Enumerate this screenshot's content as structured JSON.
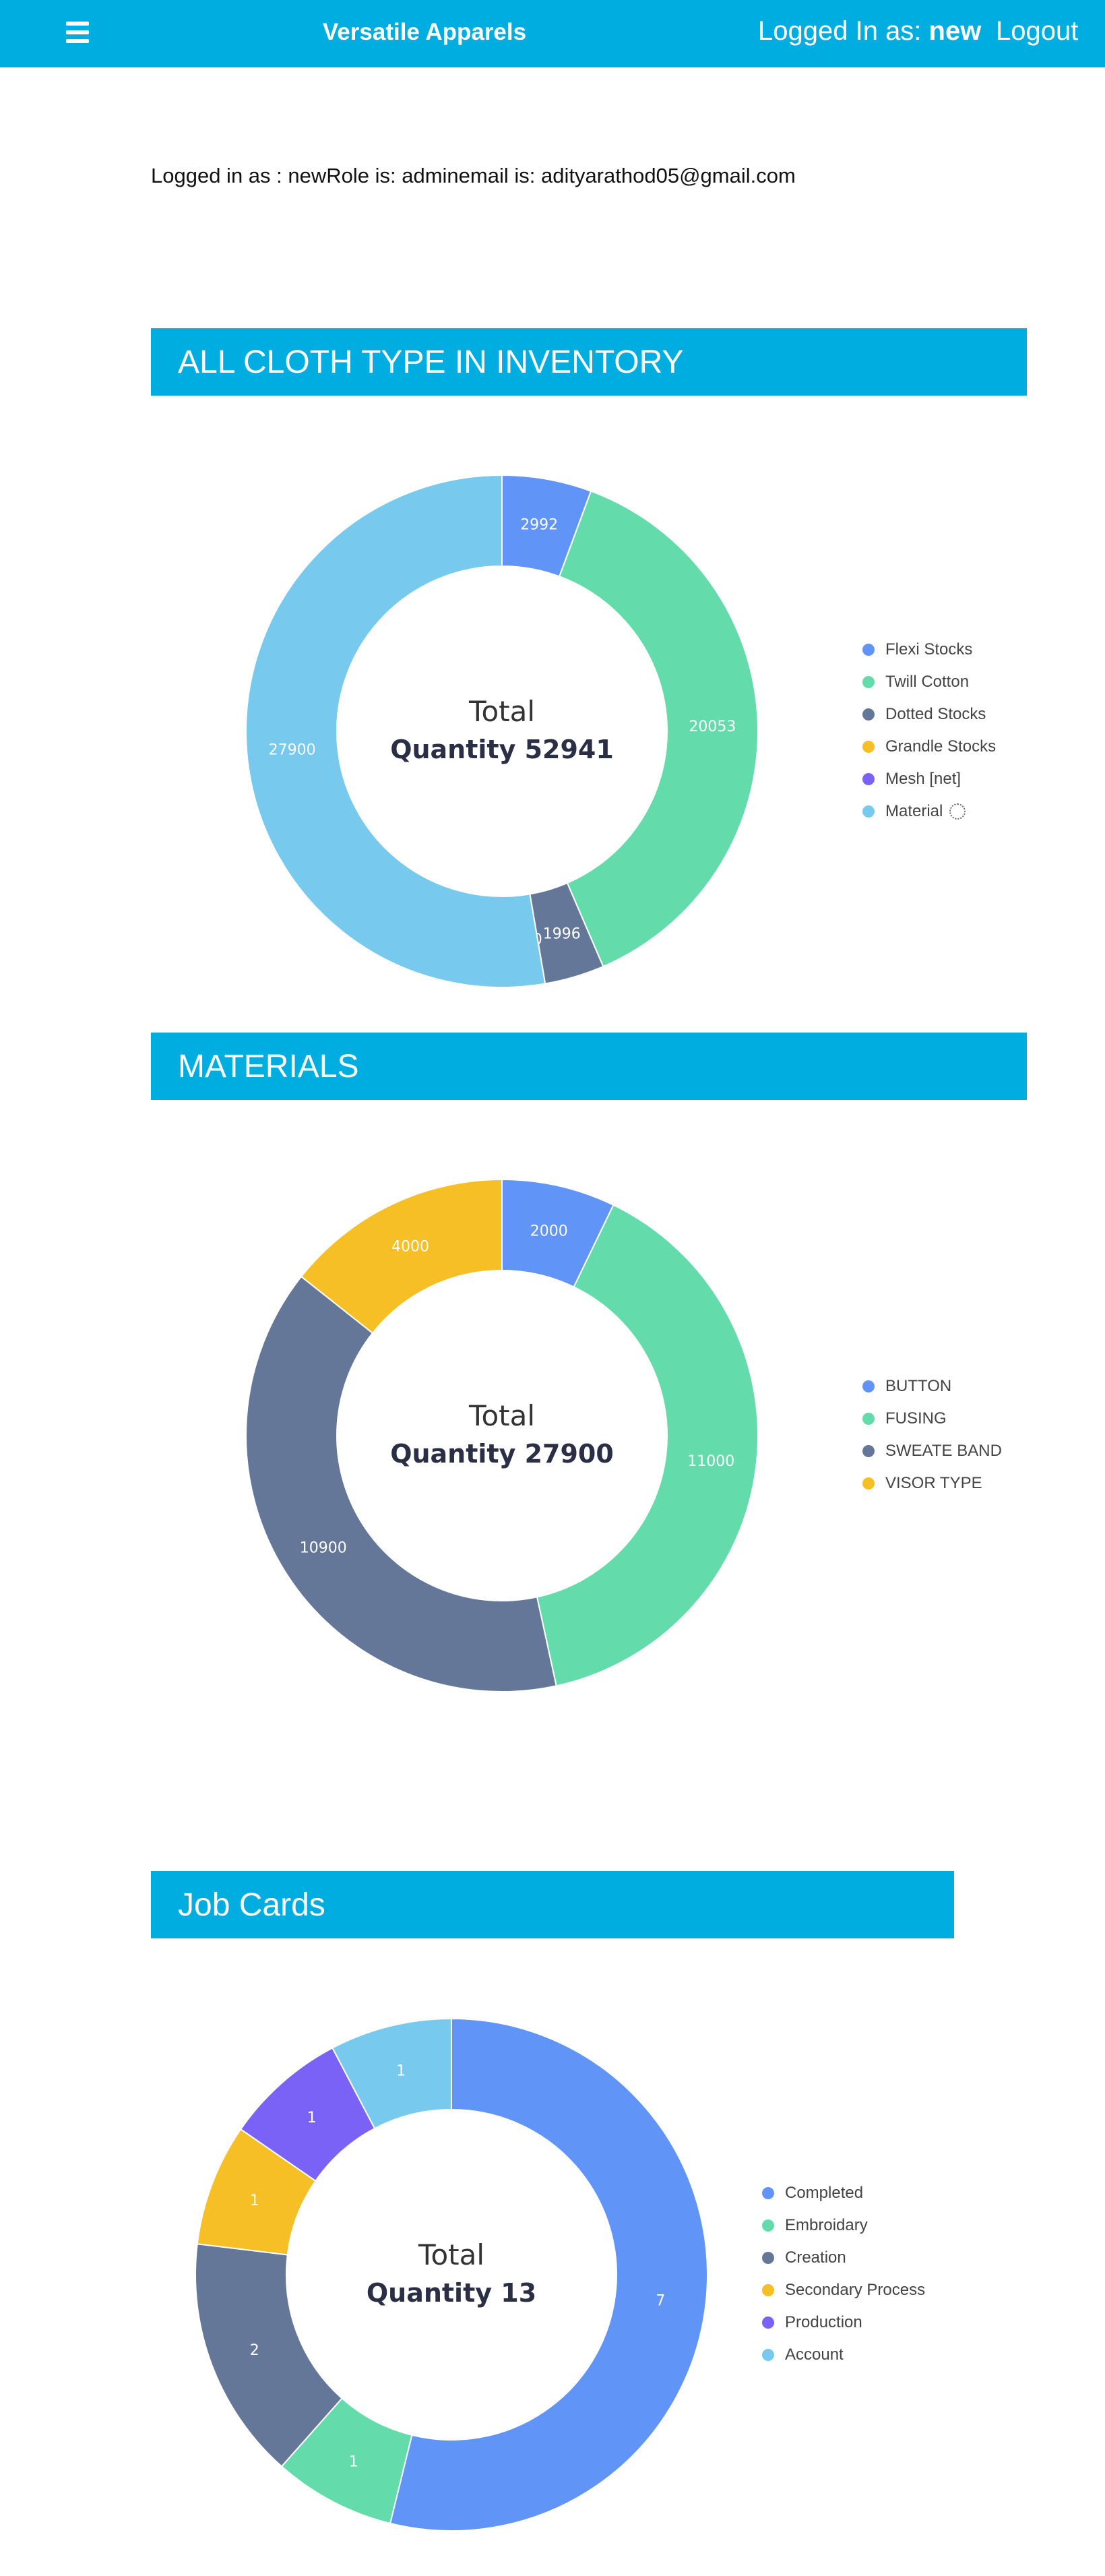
{
  "header": {
    "brand": "Versatile Apparels",
    "logged_in_prefix": "Logged In as:",
    "logged_in_user": "new",
    "logout_label": "Logout"
  },
  "info_text": "Logged in as : newRole is: adminemail is: adityarathod05@gmail.com",
  "colors": {
    "header_bg": "#00ade1",
    "palette": [
      "#6194f7",
      "#63dbab",
      "#657798",
      "#f6bf26",
      "#7a62f6",
      "#77c9ee"
    ]
  },
  "sections": {
    "cloth": {
      "title": "ALL CLOTH TYPE IN INVENTORY"
    },
    "materials": {
      "title": "MATERIALS"
    },
    "jobcards": {
      "title": "Job Cards"
    }
  },
  "chart_data": [
    {
      "type": "pie",
      "style": "donut",
      "center_label_top": "Total",
      "center_label_bottom": "Quantity 52941",
      "legend_position": "right",
      "categories": [
        "Flexi Stocks",
        "Twill Cotton",
        "Dotted Stocks",
        "Grandle Stocks",
        "Mesh [net]",
        "Material"
      ],
      "values": [
        2992,
        20053,
        1996,
        0,
        0,
        27900
      ],
      "data_labels": [
        "2992",
        "20053",
        "1996",
        "0",
        "",
        "27900"
      ],
      "colors": [
        "#6194f7",
        "#63dbab",
        "#657798",
        "#f6bf26",
        "#7a62f6",
        "#77c9ee"
      ],
      "legend_icons": [
        "",
        "",
        "",
        "",
        "",
        "loading-spinner-icon"
      ]
    },
    {
      "type": "pie",
      "style": "donut",
      "center_label_top": "Total",
      "center_label_bottom": "Quantity 27900",
      "legend_position": "right",
      "categories": [
        "BUTTON",
        "FUSING",
        "SWEATE BAND",
        "VISOR TYPE"
      ],
      "values": [
        2000,
        11000,
        10900,
        4000
      ],
      "data_labels": [
        "2000",
        "11000",
        "10900",
        "4000"
      ],
      "colors": [
        "#6194f7",
        "#63dbab",
        "#657798",
        "#f6bf26"
      ]
    },
    {
      "type": "pie",
      "style": "donut",
      "center_label_top": "Total",
      "center_label_bottom": "Quantity 13",
      "legend_position": "right",
      "categories": [
        "Completed",
        "Embroidary",
        "Creation",
        "Secondary Process",
        "Production",
        "Account"
      ],
      "values": [
        7,
        1,
        2,
        1,
        1,
        1
      ],
      "data_labels": [
        "7",
        "1",
        "2",
        "1",
        "1",
        "1"
      ],
      "colors": [
        "#6194f7",
        "#63dbab",
        "#657798",
        "#f6bf26",
        "#7a62f6",
        "#77c9ee"
      ]
    }
  ]
}
